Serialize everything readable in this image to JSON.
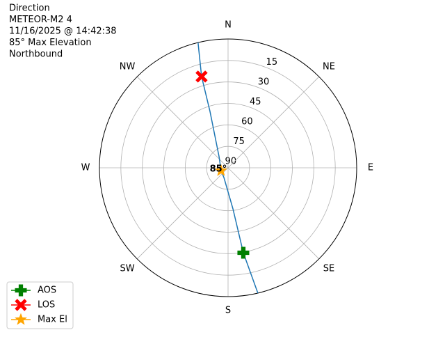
{
  "chart_data": {
    "type": "polar",
    "title": [
      "Direction",
      "METEOR-M2 4",
      "11/16/2025 @ 14:42:38",
      "85° Max Elevation",
      "Northbound"
    ],
    "xticks": [
      {
        "value": 0,
        "label": "N"
      },
      {
        "value": 45,
        "label": "NE"
      },
      {
        "value": 90,
        "label": "E"
      },
      {
        "value": 135,
        "label": "SE"
      },
      {
        "value": 180,
        "label": "S"
      },
      {
        "value": 225,
        "label": "SW"
      },
      {
        "value": 270,
        "label": "W"
      },
      {
        "value": 315,
        "label": "NW"
      }
    ],
    "ylim": [
      90,
      0
    ],
    "yticks": [
      15,
      30,
      45,
      60,
      75,
      90
    ],
    "grid": true,
    "legend": "lower left",
    "series": [
      {
        "color": "#1f77b4",
        "marker": "line",
        "x": [
          166.6,
          169.8,
          173.2,
          203,
          248,
          321,
          342.2,
          343.8,
          346.5
        ],
        "values": [
          0,
          29.7,
          61.1,
          82.6,
          84.7,
          80,
          48.6,
          23.6,
          0
        ]
      },
      {
        "name": "AOS",
        "color": "#008000",
        "marker": "plus",
        "x": [
          169.8
        ],
        "values": [
          29.7
        ]
      },
      {
        "name": "LOS",
        "color": "#ff0000",
        "marker": "x",
        "x": [
          343.8
        ],
        "values": [
          23.6
        ]
      },
      {
        "name": "Max El",
        "color": "#ffa500",
        "marker": "star",
        "x": [
          248
        ],
        "values": [
          84.7
        ],
        "value_labels": [
          "85°"
        ]
      }
    ]
  }
}
